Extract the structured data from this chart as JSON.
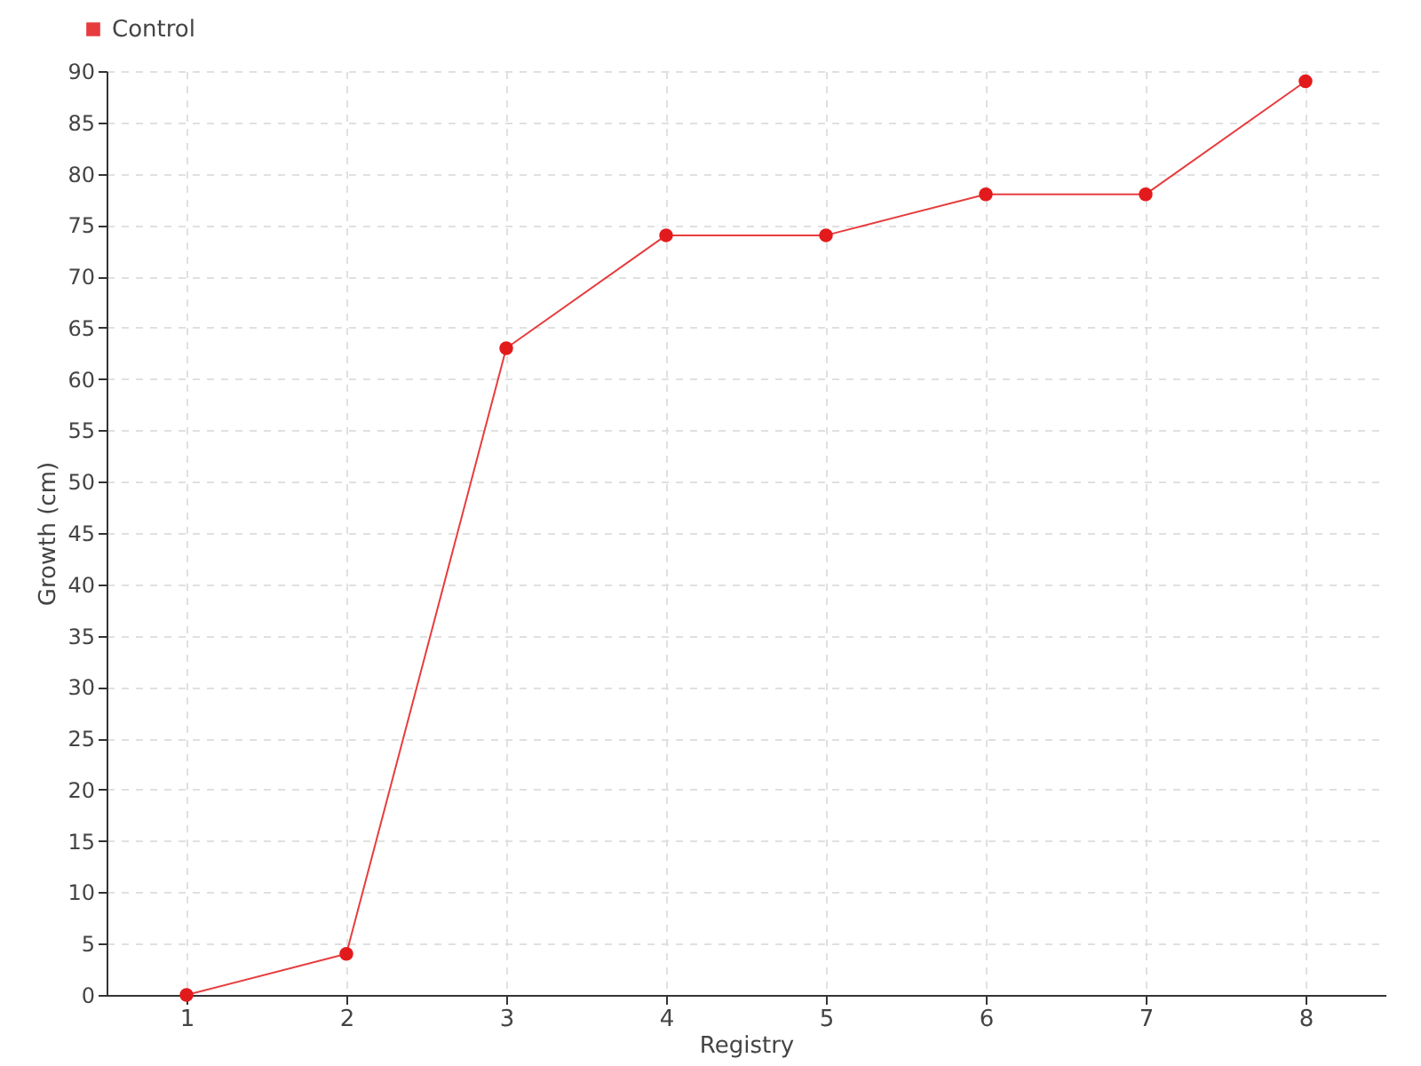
{
  "chart_data": {
    "type": "line",
    "xlabel": "Registry",
    "ylabel": "Growth (cm)",
    "categories": [
      "1",
      "2",
      "3",
      "4",
      "5",
      "6",
      "7",
      "8"
    ],
    "series": [
      {
        "name": "Control",
        "color": "#e31a1c",
        "values": [
          0,
          4,
          63,
          74,
          74,
          78,
          78,
          89
        ]
      }
    ],
    "ylim": [
      0,
      90
    ],
    "yticks": [
      0,
      5,
      10,
      15,
      20,
      25,
      30,
      35,
      40,
      45,
      50,
      55,
      60,
      65,
      70,
      75,
      80,
      85,
      90
    ],
    "grid": true,
    "legend": "top left",
    "marker": "circle",
    "line_style": "solid"
  }
}
